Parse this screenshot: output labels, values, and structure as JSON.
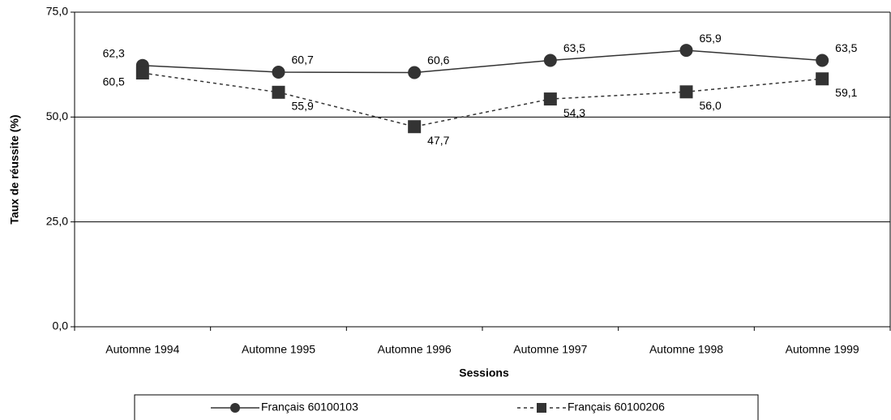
{
  "chart_data": {
    "type": "line",
    "x_label": "Sessions",
    "y_label": "Taux de réussite (%)",
    "categories": [
      "Automne 1994",
      "Automne 1995",
      "Automne 1996",
      "Automne 1997",
      "Automne 1998",
      "Automne 1999"
    ],
    "series": [
      {
        "name": "Français 60100103",
        "color": "#333333",
        "marker": "circle",
        "dash": false,
        "values": [
          62.3,
          60.7,
          60.6,
          63.5,
          65.9,
          63.5
        ],
        "value_labels": [
          "62,3",
          "60,7",
          "60,6",
          "63,5",
          "65,9",
          "63,5"
        ]
      },
      {
        "name": "Français 60100206",
        "color": "#333333",
        "marker": "square",
        "dash": true,
        "values": [
          60.5,
          55.9,
          47.7,
          54.3,
          56.0,
          59.1
        ],
        "value_labels": [
          "60,5",
          "55,9",
          "47,7",
          "54,3",
          "56,0",
          "59,1"
        ]
      }
    ],
    "ylim": [
      0,
      75
    ],
    "yticks": [
      {
        "value": 0,
        "label": "0,0"
      },
      {
        "value": 25,
        "label": "25,0"
      },
      {
        "value": 50,
        "label": "50,0"
      },
      {
        "value": 75,
        "label": "75,0"
      }
    ],
    "grid": true,
    "legend": "bottom"
  }
}
